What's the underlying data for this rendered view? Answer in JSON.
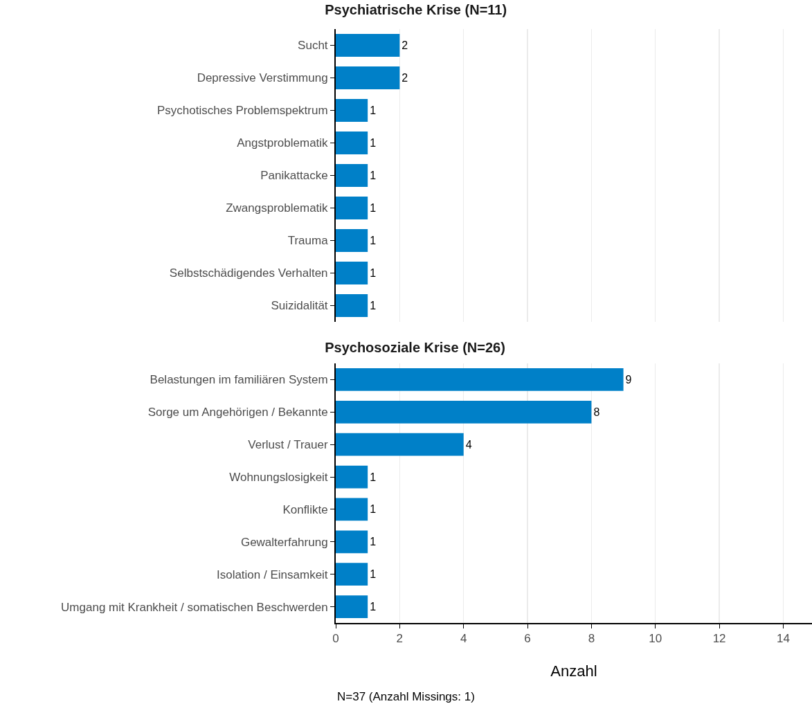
{
  "chart_data": [
    {
      "type": "bar",
      "orientation": "horizontal",
      "title": "Psychiatrische Krise (N=11)",
      "categories": [
        "Sucht",
        "Depressive Verstimmung",
        "Psychotisches Problemspektrum",
        "Angstproblematik",
        "Panikattacke",
        "Zwangsproblematik",
        "Trauma",
        "Selbstschädigendes Verhalten",
        "Suizidalität"
      ],
      "values": [
        2,
        2,
        1,
        1,
        1,
        1,
        1,
        1,
        1
      ],
      "color": "#0080c8",
      "xlim": [
        0,
        14.9
      ],
      "xticks": [
        0,
        2,
        4,
        6,
        8,
        10,
        12,
        14
      ],
      "grid": "x",
      "data_labels": true,
      "tick_labels": "y"
    },
    {
      "type": "bar",
      "orientation": "horizontal",
      "title": "Psychosoziale Krise (N=26)",
      "xlabel": "Anzahl",
      "categories": [
        "Belastungen im familiären System",
        "Sorge um Angehörigen / Bekannte",
        "Verlust / Trauer",
        "Wohnungslosigkeit",
        "Konflikte",
        "Gewalterfahrung",
        "Isolation / Einsamkeit",
        "Umgang mit Krankheit / somatischen Beschwerden"
      ],
      "values": [
        9,
        8,
        4,
        1,
        1,
        1,
        1,
        1
      ],
      "color": "#0080c8",
      "xlim": [
        0,
        14.9
      ],
      "xticks": [
        0,
        2,
        4,
        6,
        8,
        10,
        12,
        14
      ],
      "grid": "x",
      "data_labels": true,
      "annotations": [
        "N=37 (Anzahl Missings: 1)"
      ]
    }
  ]
}
